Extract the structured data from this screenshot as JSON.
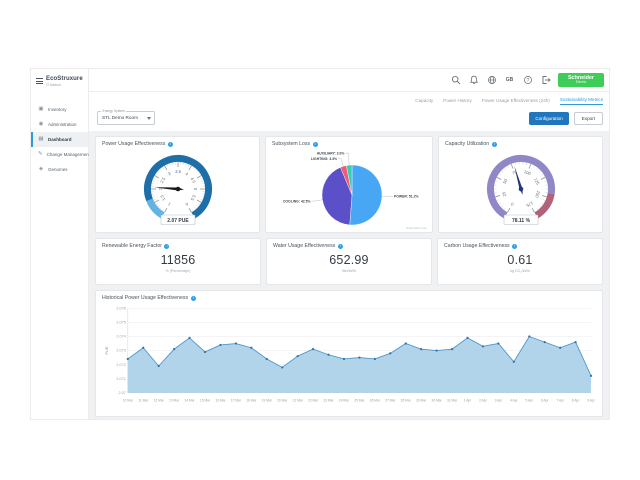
{
  "app": {
    "logo_title": "EcoStruxure",
    "logo_subtitle": "IT Advisor",
    "vendor": {
      "line1": "Schneider",
      "line2": "Electric"
    }
  },
  "header_icons": [
    {
      "name": "search-icon"
    },
    {
      "name": "notifications-icon"
    },
    {
      "name": "globe-icon"
    },
    {
      "name": "language-badge",
      "text": "GB"
    },
    {
      "name": "help-icon"
    },
    {
      "name": "logout-icon"
    }
  ],
  "sidebar": {
    "items": [
      {
        "label": "Inventory",
        "icon": "inventory-icon",
        "active": false
      },
      {
        "label": "Administration",
        "icon": "administration-icon",
        "active": false
      },
      {
        "label": "Dashboard",
        "icon": "dashboard-icon",
        "active": true
      },
      {
        "label": "Change Management",
        "icon": "change-management-icon",
        "active": false
      },
      {
        "label": "Genomes",
        "icon": "genomes-icon",
        "active": false
      }
    ]
  },
  "tabs": [
    {
      "label": "Capacity",
      "active": false
    },
    {
      "label": "Power History",
      "active": false
    },
    {
      "label": "Power Usage Effectiveness (24h)",
      "active": false
    },
    {
      "label": "Sustainability Metrics",
      "active": true
    }
  ],
  "energy_system": {
    "label": "Energy System",
    "value": "STL Demo Room"
  },
  "toolbar": {
    "configuration": "Configuration",
    "export": "Export"
  },
  "kpis": [
    {
      "title": "Renewable Energy Factor",
      "value": "11856",
      "unit": "% (Percentage)"
    },
    {
      "title": "Water Usage Effectiveness",
      "value": "652.99",
      "unit": "liter/kWh"
    },
    {
      "title": "Carbon Usage Effectiveness",
      "value": "0.61",
      "unit": "kg CO₂/kWh"
    }
  ],
  "colors": {
    "accent_blue": "#2f9bd6",
    "button_blue": "#2077bd",
    "brand_green": "#3dcd58",
    "info_blue": "#2b9fe8"
  },
  "chart_data": [
    {
      "type": "gauge",
      "title": "Power Usage Effectiveness",
      "min": 1,
      "max": 6,
      "tick_interval": 0.5,
      "minor_tick": 0.1,
      "value": 2.07,
      "value_label": "2.07 PUE",
      "needle_color": "#1a1a1a",
      "segments": [
        {
          "from": 1,
          "to": 1.65,
          "color": "#63b4e4"
        },
        {
          "from": 1.65,
          "to": 6,
          "color": "#1e6fa7"
        }
      ]
    },
    {
      "type": "pie",
      "title": "Subsystem Loss",
      "slices": [
        {
          "name": "POWER",
          "value": 51.2,
          "label": "POWER: 51.2%",
          "color": "#47a7f5"
        },
        {
          "name": "COOLING",
          "value": 42.5,
          "label": "COOLING: 42.5%",
          "color": "#5b50c8"
        },
        {
          "name": "LIGHTING",
          "value": 3.3,
          "label": "LIGHTING: 3.3%",
          "color": "#ef5b78"
        },
        {
          "name": "AUXILIARY",
          "value": 3.0,
          "label": "AUXILIARY: 3.0%",
          "color": "#35d0b0"
        }
      ],
      "credit": "Highcharts.com"
    },
    {
      "type": "gauge",
      "title": "Capacity Utilization",
      "min": 0,
      "max": 175,
      "tick_interval": 25,
      "minor_tick": 5,
      "value": 78.11,
      "value_label": "78.11 %",
      "needle_color": "#23357d",
      "segments": [
        {
          "from": 0,
          "to": 145,
          "color": "#9087c6"
        },
        {
          "from": 145,
          "to": 175,
          "color": "#b16278"
        }
      ]
    },
    {
      "type": "area",
      "title": "Historical Power Usage Effectiveness",
      "xlabel": "",
      "ylabel": "PUE",
      "ylim": [
        2.07,
        2.076
      ],
      "y_ticks": [
        "2.07",
        "2.071",
        "2.072",
        "2.073",
        "2.074",
        "2.075",
        "2.076"
      ],
      "grid": true,
      "line_color": "#4e96cb",
      "fill_color": "#a9cfe9",
      "marker_color": "#31709f",
      "categories": [
        "10 Mar",
        "11 Mar",
        "12 Mar",
        "13 Mar",
        "14 Mar",
        "15 Mar",
        "16 Mar",
        "17 Mar",
        "18 Mar",
        "19 Mar",
        "20 Mar",
        "21 Mar",
        "22 Mar",
        "23 Mar",
        "24 Mar",
        "25 Mar",
        "26 Mar",
        "27 Mar",
        "28 Mar",
        "29 Mar",
        "30 Mar",
        "31 Mar",
        "1 Apr",
        "2 Apr",
        "3 Apr",
        "4 Apr",
        "5 Apr",
        "6 Apr",
        "7 Apr",
        "8 Apr",
        "9 Apr"
      ],
      "values": [
        2.0724,
        2.0732,
        2.0719,
        2.0731,
        2.0739,
        2.0729,
        2.0734,
        2.0735,
        2.0732,
        2.0724,
        2.0718,
        2.0726,
        2.0731,
        2.0727,
        2.0724,
        2.0725,
        2.0724,
        2.0728,
        2.0735,
        2.0731,
        2.073,
        2.0731,
        2.0739,
        2.0733,
        2.0735,
        2.0722,
        2.074,
        2.0736,
        2.0732,
        2.0736,
        2.0712
      ]
    }
  ]
}
